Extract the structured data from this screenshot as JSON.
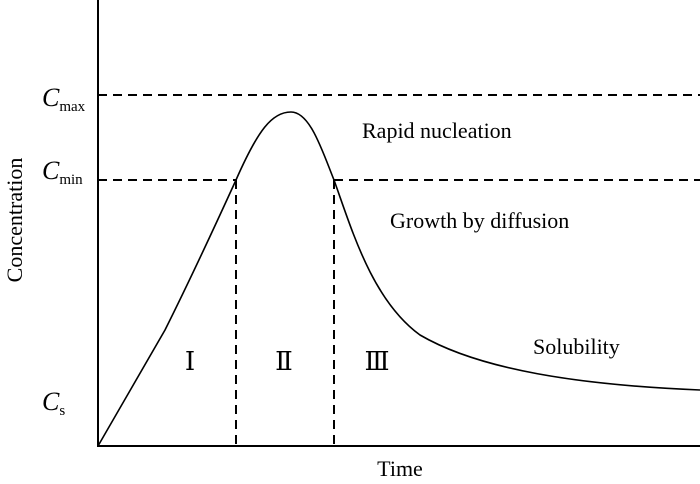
{
  "diagram": {
    "x_axis_label": "Time",
    "y_axis_label": "Concentration",
    "levels": {
      "cmax": {
        "symbol": "C",
        "subscript": "max"
      },
      "cmin": {
        "symbol": "C",
        "subscript": "min"
      },
      "cs": {
        "symbol": "C",
        "subscript": "s"
      }
    },
    "regions": {
      "rapid_nucleation": "Rapid nucleation",
      "growth_by_diffusion": "Growth by diffusion",
      "solubility": "Solubility"
    },
    "stages": [
      "Ⅰ",
      "Ⅱ",
      "Ⅲ"
    ]
  }
}
